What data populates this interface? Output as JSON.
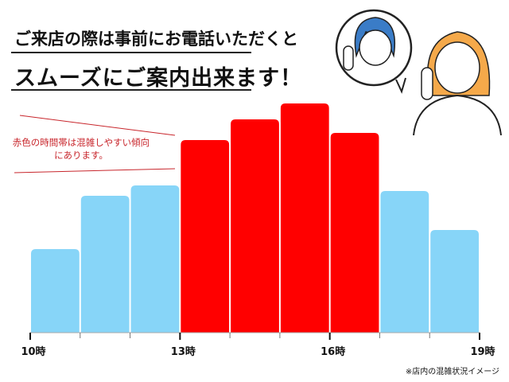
{
  "header": {
    "line1": "ご来店の際は事前にお電話いただくと",
    "line2": "スムーズにご案内出来ます！"
  },
  "note": "赤色の時間帯は混雑しやすい傾向にあります。",
  "footnote": "※店内の混雑状況イメージ",
  "colors": {
    "busy": "#ff0000",
    "normal": "#87d5f8",
    "note": "#c8262c"
  },
  "chart_data": {
    "type": "bar",
    "categories": [
      "10-11",
      "11-12",
      "12-13",
      "13-14",
      "14-15",
      "15-16",
      "16-17",
      "17-18",
      "18-19"
    ],
    "values": [
      105,
      172,
      185,
      242,
      268,
      288,
      251,
      178,
      129
    ],
    "busy": [
      false,
      false,
      false,
      true,
      true,
      true,
      true,
      false,
      false
    ],
    "tick_labels": [
      "10時",
      "13時",
      "16時",
      "19時"
    ],
    "tick_hours": [
      10,
      13,
      16,
      19
    ],
    "ylim": [
      0,
      300
    ],
    "grid": false,
    "xlabel": "",
    "ylabel": ""
  }
}
